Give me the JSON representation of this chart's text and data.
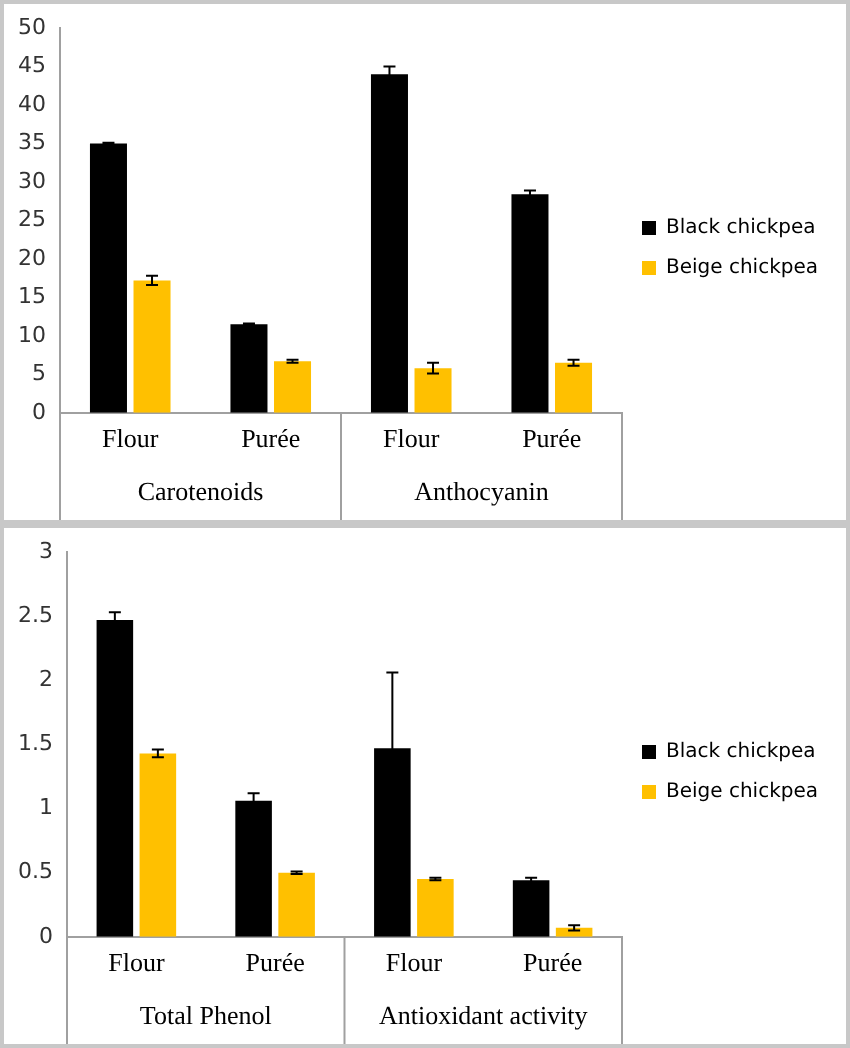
{
  "chart_data": [
    {
      "type": "bar",
      "categories": [
        "Flour",
        "Purée",
        "Flour",
        "Purée"
      ],
      "annotations": [
        "Carotenoids",
        "Anthocyanin"
      ],
      "series": [
        {
          "name": "Black chickpea",
          "color": "#000000",
          "values": [
            35.0,
            11.5,
            44.0,
            28.4
          ],
          "errors": [
            0.1,
            0.1,
            1.0,
            0.5
          ]
        },
        {
          "name": "Beige chickpea",
          "color": "#ffc000",
          "values": [
            17.2,
            6.7,
            5.8,
            6.5
          ],
          "errors": [
            0.6,
            0.2,
            0.7,
            0.4
          ]
        }
      ],
      "ylim": [
        0,
        50
      ],
      "yticks": [
        0,
        5,
        10,
        15,
        20,
        25,
        30,
        35,
        40,
        45,
        50
      ],
      "grid": false,
      "legend": "right"
    },
    {
      "type": "bar",
      "categories": [
        "Flour",
        "Purée",
        "Flour",
        "Purée"
      ],
      "annotations": [
        "Total Phenol",
        "Antioxidant activity"
      ],
      "series": [
        {
          "name": "Black chickpea",
          "color": "#000000",
          "values": [
            2.47,
            1.06,
            1.47,
            0.44
          ],
          "errors": [
            0.06,
            0.06,
            0.59,
            0.02
          ]
        },
        {
          "name": "Beige chickpea",
          "color": "#ffc000",
          "values": [
            1.43,
            0.5,
            0.45,
            0.07
          ],
          "errors": [
            0.03,
            0.01,
            0.01,
            0.02
          ]
        }
      ],
      "ylim": [
        0,
        3
      ],
      "yticks": [
        0,
        0.5,
        1,
        1.5,
        2,
        2.5,
        3
      ],
      "grid": false,
      "legend": "right"
    }
  ]
}
